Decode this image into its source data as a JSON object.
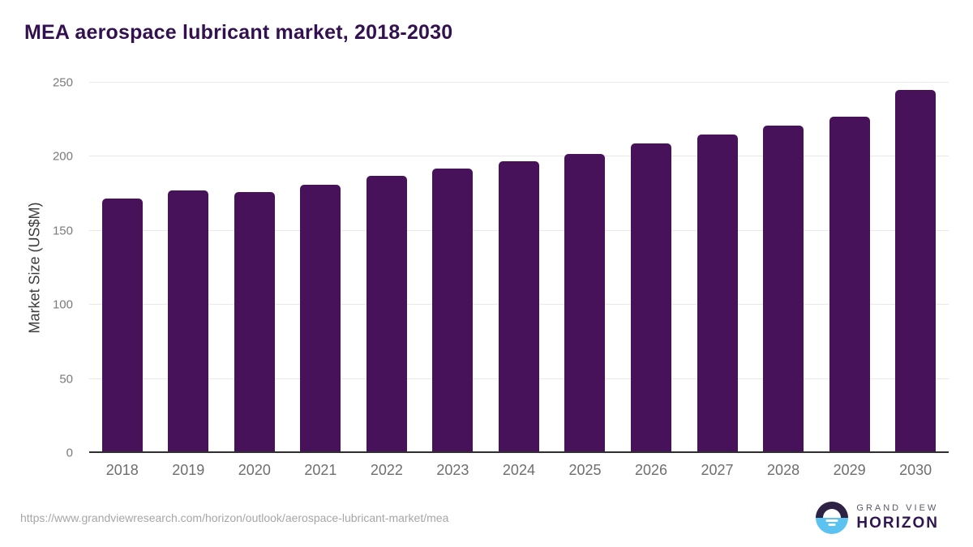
{
  "page": {
    "title": "MEA aerospace lubricant market, 2018-2030",
    "source_url": "https://www.grandviewresearch.com/horizon/outlook/aerospace-lubricant-market/mea"
  },
  "branding": {
    "icon": "horizon-sun-icon",
    "name_top": "GRAND VIEW",
    "name_bottom": "HORIZON"
  },
  "colors": {
    "bar": "#471259",
    "title_text": "#331150",
    "gridline": "#e8e8e8",
    "axis_line": "#2f2f2f",
    "y_tick_text": "#7a7a7a",
    "x_tick_text": "#6e6e6e",
    "url_text": "#a6a6a6",
    "logo_dark": "#2d2144",
    "logo_blue": "#5cc3f0"
  },
  "chart_data": {
    "type": "bar",
    "title": "MEA aerospace lubricant market, 2018-2030",
    "categories": [
      "2018",
      "2019",
      "2020",
      "2021",
      "2022",
      "2023",
      "2024",
      "2025",
      "2026",
      "2027",
      "2028",
      "2029",
      "2030"
    ],
    "values": [
      172,
      177,
      176,
      181,
      187,
      192,
      197,
      202,
      209,
      215,
      221,
      227,
      245
    ],
    "xlabel": "",
    "ylabel": "Market Size (US$M)",
    "ylim": [
      0,
      250
    ],
    "yticks": [
      0,
      50,
      100,
      150,
      200,
      250
    ],
    "grid": true,
    "legend": false,
    "bar_color": "#471259"
  }
}
